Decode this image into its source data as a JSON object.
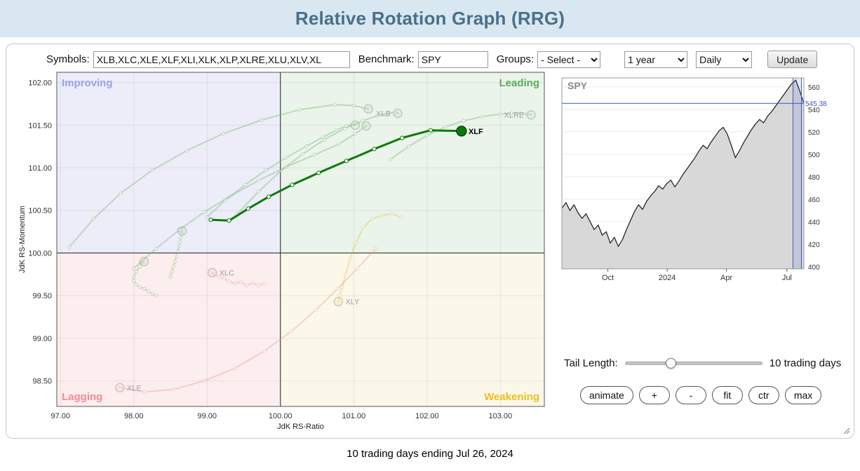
{
  "header": {
    "title": "Relative Rotation Graph (RRG)"
  },
  "toolbar": {
    "symbols_label": "Symbols:",
    "symbols_value": "XLB,XLC,XLE,XLF,XLI,XLK,XLP,XLRE,XLU,XLV,XL",
    "benchmark_label": "Benchmark:",
    "benchmark_value": "SPY",
    "groups_label": "Groups:",
    "groups_select_value": "- Select -",
    "period_select_value": "1 year",
    "frequency_select_value": "Daily",
    "update_label": "Update"
  },
  "controls": {
    "tail_label": "Tail Length:",
    "tail_value_label": "10 trading days",
    "tail_slider_position": 0.34,
    "buttons": [
      "animate",
      "+",
      "-",
      "fit",
      "ctr",
      "max"
    ]
  },
  "footer": {
    "text": "10 trading days ending Jul 26, 2024"
  },
  "colors": {
    "header_bg": "#d9e7f0",
    "title_text": "#497089",
    "accent_blue": "#3a56c8",
    "rrg_highlight": "#0b7a0b"
  },
  "chart_data": [
    {
      "id": "rrg",
      "type": "scatter",
      "title": "",
      "xlabel": "JdK RS-Ratio",
      "ylabel": "JdK RS-Momentum",
      "xlim": [
        96.95,
        103.6
      ],
      "ylim": [
        98.2,
        102.12
      ],
      "x_ticks": [
        97,
        98,
        99,
        100,
        101,
        102,
        103
      ],
      "y_ticks": [
        98.5,
        99,
        99.5,
        100,
        100.5,
        101,
        101.5,
        102
      ],
      "center": [
        100,
        100
      ],
      "grid": true,
      "quadrants": [
        {
          "name": "Improving",
          "corner": "top-left",
          "bg": "#ecedf8",
          "label_color": "#98a4e2"
        },
        {
          "name": "Leading",
          "corner": "top-right",
          "bg": "#ebf4ea",
          "label_color": "#5aad5a"
        },
        {
          "name": "Lagging",
          "corner": "bottom-left",
          "bg": "#fcedee",
          "label_color": "#f28b95"
        },
        {
          "name": "Weakening",
          "corner": "bottom-right",
          "bg": "#fcf8e9",
          "label_color": "#edbf18"
        }
      ],
      "series": [
        {
          "symbol": "XLK",
          "highlighted": false,
          "label_visible": false,
          "label_side": "right",
          "color": "#7ab87a",
          "points": [
            [
              97.12,
              100.07
            ],
            [
              97.45,
              100.4
            ],
            [
              97.82,
              100.7
            ],
            [
              98.25,
              100.97
            ],
            [
              98.72,
              101.2
            ],
            [
              99.22,
              101.4
            ],
            [
              99.74,
              101.56
            ],
            [
              100.26,
              101.68
            ],
            [
              100.74,
              101.74
            ],
            [
              101.0,
              101.73
            ],
            [
              101.2,
              101.69
            ]
          ]
        },
        {
          "symbol": "XLB",
          "highlighted": false,
          "label_visible": true,
          "label_side": "left",
          "color": "#7ab87a",
          "points": [
            [
              99.4,
              100.45
            ],
            [
              99.7,
              100.72
            ],
            [
              100.0,
              100.96
            ],
            [
              100.3,
              101.16
            ],
            [
              100.6,
              101.33
            ],
            [
              100.88,
              101.46
            ],
            [
              101.12,
              101.55
            ],
            [
              101.32,
              101.61
            ],
            [
              101.48,
              101.64
            ],
            [
              101.56,
              101.65
            ],
            [
              101.6,
              101.64
            ]
          ]
        },
        {
          "symbol": "XLI",
          "highlighted": false,
          "label_visible": false,
          "label_side": "right",
          "color": "#7ab87a",
          "points": [
            [
              98.0,
              99.82
            ],
            [
              98.3,
              100.05
            ],
            [
              98.62,
              100.27
            ],
            [
              98.96,
              100.48
            ],
            [
              99.32,
              100.67
            ],
            [
              99.7,
              100.85
            ],
            [
              100.08,
              101.01
            ],
            [
              100.46,
              101.15
            ],
            [
              100.8,
              101.28
            ],
            [
              101.02,
              101.4
            ],
            [
              101.17,
              101.49
            ]
          ]
        },
        {
          "symbol": "XLV",
          "highlighted": false,
          "label_visible": false,
          "label_side": "right",
          "color": "#7ab87a",
          "points": [
            [
              99.0,
              100.42
            ],
            [
              99.25,
              100.62
            ],
            [
              99.52,
              100.8
            ],
            [
              99.8,
              100.97
            ],
            [
              100.08,
              101.12
            ],
            [
              100.35,
              101.25
            ],
            [
              100.58,
              101.36
            ],
            [
              100.76,
              101.44
            ],
            [
              100.9,
              101.49
            ],
            [
              100.98,
              101.51
            ],
            [
              101.02,
              101.5
            ]
          ]
        },
        {
          "symbol": "XLRE",
          "highlighted": false,
          "label_visible": true,
          "label_side": "left",
          "color": "#7ab87a",
          "points": [
            [
              101.5,
              101.1
            ],
            [
              101.75,
              101.25
            ],
            [
              102.0,
              101.38
            ],
            [
              102.25,
              101.48
            ],
            [
              102.5,
              101.55
            ],
            [
              102.75,
              101.6
            ],
            [
              103.0,
              101.63
            ],
            [
              103.15,
              101.64
            ],
            [
              103.28,
              101.64
            ],
            [
              103.36,
              101.63
            ],
            [
              103.42,
              101.62
            ]
          ]
        },
        {
          "symbol": "XLP",
          "highlighted": false,
          "label_visible": false,
          "label_side": "right",
          "color": "#7ab87a",
          "points": [
            [
              98.5,
              99.72
            ],
            [
              98.52,
              99.78
            ],
            [
              98.54,
              99.84
            ],
            [
              98.56,
              99.9
            ],
            [
              98.58,
              99.96
            ],
            [
              98.6,
              100.02
            ],
            [
              98.62,
              100.08
            ],
            [
              98.63,
              100.13
            ],
            [
              98.64,
              100.18
            ],
            [
              98.65,
              100.22
            ],
            [
              98.66,
              100.26
            ]
          ]
        },
        {
          "symbol": "XLU",
          "highlighted": false,
          "label_visible": false,
          "label_side": "right",
          "color": "#7ab87a",
          "points": [
            [
              98.3,
              99.5
            ],
            [
              98.25,
              99.52
            ],
            [
              98.2,
              99.55
            ],
            [
              98.14,
              99.58
            ],
            [
              98.08,
              99.6
            ],
            [
              98.03,
              99.63
            ],
            [
              98.0,
              99.67
            ],
            [
              98.0,
              99.72
            ],
            [
              98.03,
              99.78
            ],
            [
              98.08,
              99.84
            ],
            [
              98.14,
              99.9
            ]
          ]
        },
        {
          "symbol": "XLC",
          "highlighted": false,
          "label_visible": true,
          "label_side": "right",
          "color": "#eba0a0",
          "points": [
            [
              99.78,
              99.64
            ],
            [
              99.7,
              99.62
            ],
            [
              99.62,
              99.65
            ],
            [
              99.54,
              99.62
            ],
            [
              99.46,
              99.66
            ],
            [
              99.38,
              99.64
            ],
            [
              99.3,
              99.67
            ],
            [
              99.23,
              99.7
            ],
            [
              99.17,
              99.72
            ],
            [
              99.11,
              99.74
            ],
            [
              99.07,
              99.77
            ]
          ]
        },
        {
          "symbol": "XLE",
          "highlighted": false,
          "label_visible": true,
          "label_side": "right",
          "color": "#eba0a0",
          "points": [
            [
              101.3,
              100.05
            ],
            [
              101.05,
              99.82
            ],
            [
              100.78,
              99.58
            ],
            [
              100.48,
              99.33
            ],
            [
              100.15,
              99.08
            ],
            [
              99.78,
              98.85
            ],
            [
              99.38,
              98.65
            ],
            [
              98.96,
              98.5
            ],
            [
              98.55,
              98.4
            ],
            [
              98.15,
              98.37
            ],
            [
              97.81,
              98.42
            ]
          ]
        },
        {
          "symbol": "XLY",
          "highlighted": false,
          "label_visible": true,
          "label_side": "right",
          "color": "#ddbe5a",
          "points": [
            [
              101.65,
              100.42
            ],
            [
              101.52,
              100.46
            ],
            [
              101.38,
              100.44
            ],
            [
              101.25,
              100.4
            ],
            [
              101.13,
              100.3
            ],
            [
              101.03,
              100.12
            ],
            [
              100.95,
              99.93
            ],
            [
              100.89,
              99.75
            ],
            [
              100.84,
              99.6
            ],
            [
              100.81,
              99.5
            ],
            [
              100.79,
              99.43
            ]
          ]
        },
        {
          "symbol": "XLF",
          "highlighted": true,
          "label_visible": true,
          "label_side": "right",
          "color": "#0b7a0b",
          "points": [
            [
              99.05,
              100.39
            ],
            [
              99.3,
              100.38
            ],
            [
              99.56,
              100.52
            ],
            [
              99.84,
              100.66
            ],
            [
              100.16,
              100.8
            ],
            [
              100.52,
              100.94
            ],
            [
              100.9,
              101.08
            ],
            [
              101.28,
              101.22
            ],
            [
              101.66,
              101.35
            ],
            [
              102.05,
              101.44
            ],
            [
              102.47,
              101.43
            ]
          ]
        }
      ]
    },
    {
      "id": "spy",
      "type": "area",
      "title": "SPY",
      "ylim": [
        398,
        568
      ],
      "y_ticks": [
        400,
        420,
        440,
        460,
        480,
        500,
        520,
        540,
        560
      ],
      "x_ticks": [
        {
          "label": "Oct",
          "t": 0.19
        },
        {
          "label": "2024",
          "t": 0.435
        },
        {
          "label": "Apr",
          "t": 0.68
        },
        {
          "label": "Jul",
          "t": 0.93
        }
      ],
      "last_price": 545.38,
      "last_price_label": "545.38",
      "highlight_window": [
        0.955,
        0.99
      ],
      "line_color": "#1a1a1a",
      "area_color": "#d8d8d8",
      "accent_color": "#3a56c8",
      "prices": [
        452,
        457,
        450,
        455,
        448,
        443,
        447,
        440,
        433,
        437,
        428,
        431,
        421,
        426,
        418,
        424,
        433,
        441,
        449,
        455,
        451,
        458,
        463,
        467,
        472,
        469,
        474,
        477,
        471,
        476,
        482,
        487,
        492,
        497,
        503,
        508,
        505,
        511,
        516,
        521,
        524,
        518,
        508,
        497,
        503,
        510,
        516,
        522,
        527,
        531,
        528,
        534,
        538,
        543,
        548,
        553,
        558,
        563,
        566,
        556,
        545.38
      ]
    }
  ]
}
